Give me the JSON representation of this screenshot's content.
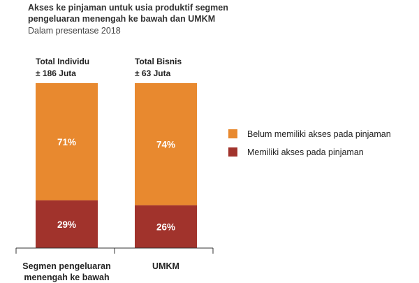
{
  "chart_data": {
    "type": "bar",
    "stacked": true,
    "percent": true,
    "title": "Akses ke pinjaman untuk usia produktif segmen pengeluaran menengah ke bawah dan UMKM",
    "subtitle": "Dalam presentase 2018",
    "categories": [
      "Segmen pengeluaran menengah ke bawah",
      "UMKM"
    ],
    "category_lines": [
      [
        "Segmen pengeluaran",
        "menengah ke bawah"
      ],
      [
        "UMKM"
      ]
    ],
    "group_headers": [
      [
        "Total Individu",
        "± 186 Juta"
      ],
      [
        "Total Bisnis",
        "± 63 Juta"
      ]
    ],
    "series": [
      {
        "name": "Memiliki akses pada pinjaman",
        "values": [
          29,
          26
        ],
        "labels": [
          "29%",
          "26%"
        ],
        "color": "#a1332c"
      },
      {
        "name": "Belum memiliki akses pada pinjaman",
        "values": [
          71,
          74
        ],
        "labels": [
          "71%",
          "74%"
        ],
        "color": "#e8892f"
      }
    ],
    "legend_order": [
      1,
      0
    ],
    "legend_position": "right",
    "ylim": [
      0,
      100
    ],
    "grid": false
  }
}
